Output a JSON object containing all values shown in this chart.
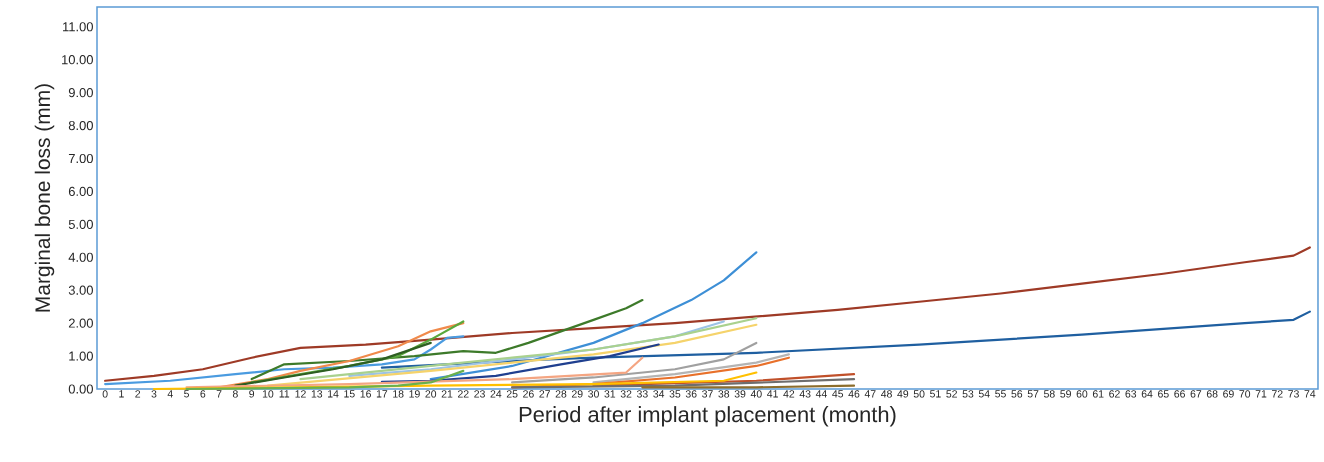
{
  "chart_data": {
    "type": "line",
    "xlabel": "Period after implant placement (month)",
    "ylabel": "Marginal bone loss (mm)",
    "marker": "none",
    "line_style": "solid",
    "xlim": [
      -0.5,
      74.5
    ],
    "xticks": [
      0,
      1,
      2,
      3,
      4,
      5,
      6,
      7,
      8,
      9,
      10,
      11,
      12,
      13,
      14,
      15,
      16,
      17,
      18,
      19,
      20,
      21,
      22,
      23,
      24,
      25,
      26,
      27,
      28,
      29,
      30,
      31,
      32,
      33,
      34,
      35,
      36,
      37,
      38,
      39,
      40,
      41,
      42,
      43,
      44,
      45,
      46,
      47,
      48,
      49,
      50,
      51,
      52,
      53,
      54,
      55,
      56,
      57,
      58,
      59,
      60,
      61,
      62,
      63,
      64,
      65,
      66,
      67,
      68,
      69,
      70,
      71,
      72,
      73,
      74
    ],
    "ylim": [
      0,
      11.6
    ],
    "yticks": [
      {
        "value": 0,
        "label": "0.00"
      },
      {
        "value": 1,
        "label": "1.00"
      },
      {
        "value": 2,
        "label": "2.00"
      },
      {
        "value": 3,
        "label": "3.00"
      },
      {
        "value": 4,
        "label": "4.00"
      },
      {
        "value": 5,
        "label": "5.00"
      },
      {
        "value": 6,
        "label": "6.00"
      },
      {
        "value": 7,
        "label": "7.00"
      },
      {
        "value": 8,
        "label": "8.00"
      },
      {
        "value": 9,
        "label": "9.00"
      },
      {
        "value": 10,
        "label": "10.00"
      },
      {
        "value": 11,
        "label": "11.00"
      }
    ],
    "series": [
      {
        "color": "#9e3a26",
        "x": [
          0,
          3,
          6,
          9,
          12,
          16,
          20,
          25,
          30,
          35,
          40,
          45,
          50,
          55,
          60,
          65,
          70,
          73,
          74
        ],
        "values": [
          0.25,
          0.4,
          0.6,
          0.95,
          1.25,
          1.35,
          1.5,
          1.7,
          1.85,
          2.0,
          2.2,
          2.4,
          2.65,
          2.9,
          3.2,
          3.5,
          3.85,
          4.05,
          4.3
        ]
      },
      {
        "color": "#1f5fa0",
        "x": [
          17,
          25,
          30,
          40,
          50,
          60,
          70,
          73,
          74
        ],
        "values": [
          0.65,
          0.85,
          0.95,
          1.1,
          1.35,
          1.65,
          2.0,
          2.1,
          2.35
        ]
      },
      {
        "color": "#3d8fd6",
        "x": [
          20,
          25,
          30,
          33,
          36,
          38,
          40
        ],
        "values": [
          0.3,
          0.7,
          1.4,
          2.0,
          2.7,
          3.3,
          4.15
        ]
      },
      {
        "color": "#4a9be0",
        "x": [
          0,
          4,
          8,
          11,
          14,
          17,
          19,
          20,
          21,
          22
        ],
        "values": [
          0.15,
          0.25,
          0.45,
          0.6,
          0.65,
          0.75,
          0.9,
          1.2,
          1.55,
          1.6
        ]
      },
      {
        "color": "#3d7a2a",
        "x": [
          9,
          11,
          15,
          19,
          22,
          24,
          26,
          28,
          30,
          32,
          33
        ],
        "values": [
          0.3,
          0.75,
          0.85,
          1.0,
          1.15,
          1.1,
          1.4,
          1.75,
          2.1,
          2.45,
          2.7
        ]
      },
      {
        "color": "#f08a4b",
        "x": [
          7,
          10,
          12,
          15,
          18,
          20,
          22
        ],
        "values": [
          0.05,
          0.3,
          0.55,
          0.85,
          1.3,
          1.75,
          2.0
        ]
      },
      {
        "color": "#5aa83c",
        "x": [
          9,
          12,
          15,
          18,
          20,
          22
        ],
        "values": [
          0.2,
          0.45,
          0.7,
          1.0,
          1.5,
          2.05
        ]
      },
      {
        "color": "#2e5e22",
        "x": [
          8,
          11,
          14,
          17,
          20
        ],
        "values": [
          0.1,
          0.35,
          0.6,
          0.9,
          1.4
        ]
      },
      {
        "color": "#9cc3e6",
        "x": [
          15,
          20,
          25,
          30,
          35,
          38
        ],
        "values": [
          0.4,
          0.6,
          0.9,
          1.2,
          1.6,
          2.05
        ]
      },
      {
        "color": "#a9d18e",
        "x": [
          12,
          20,
          25,
          30,
          35,
          40
        ],
        "values": [
          0.3,
          0.7,
          0.95,
          1.2,
          1.6,
          2.15
        ]
      },
      {
        "color": "#f5d36b",
        "x": [
          10,
          20,
          25,
          30,
          35,
          40
        ],
        "values": [
          0.1,
          0.55,
          0.8,
          1.05,
          1.4,
          1.95
        ]
      },
      {
        "color": "#1f3f8f",
        "x": [
          17,
          20,
          24,
          28,
          31,
          34
        ],
        "values": [
          0.22,
          0.25,
          0.4,
          0.75,
          1.0,
          1.35
        ]
      },
      {
        "color": "#a0a0a0",
        "x": [
          25,
          30,
          35,
          38,
          40
        ],
        "values": [
          0.2,
          0.35,
          0.6,
          0.9,
          1.4
        ]
      },
      {
        "color": "#b4b4b4",
        "x": [
          30,
          35,
          40,
          42
        ],
        "values": [
          0.2,
          0.45,
          0.8,
          1.05
        ]
      },
      {
        "color": "#e8702a",
        "x": [
          25,
          30,
          35,
          40,
          42
        ],
        "values": [
          0.05,
          0.15,
          0.35,
          0.7,
          0.95
        ]
      },
      {
        "color": "#f4a582",
        "x": [
          5,
          15,
          25,
          32,
          33
        ],
        "values": [
          0.05,
          0.15,
          0.3,
          0.5,
          0.95
        ]
      },
      {
        "color": "#c0502a",
        "x": [
          30,
          40,
          46
        ],
        "values": [
          0.1,
          0.25,
          0.45
        ]
      },
      {
        "color": "#6e6e6e",
        "x": [
          25,
          35,
          46
        ],
        "values": [
          0.05,
          0.1,
          0.3
        ]
      },
      {
        "color": "#8c6d2c",
        "x": [
          33,
          40,
          46
        ],
        "values": [
          0.05,
          0.05,
          0.1
        ]
      },
      {
        "color": "#ffc000",
        "x": [
          3,
          20,
          30,
          38,
          40
        ],
        "values": [
          0.0,
          0.1,
          0.15,
          0.25,
          0.5
        ]
      },
      {
        "color": "#6ab04c",
        "x": [
          5,
          15,
          18,
          20,
          22
        ],
        "values": [
          0.0,
          0.05,
          0.1,
          0.2,
          0.55
        ]
      }
    ]
  }
}
